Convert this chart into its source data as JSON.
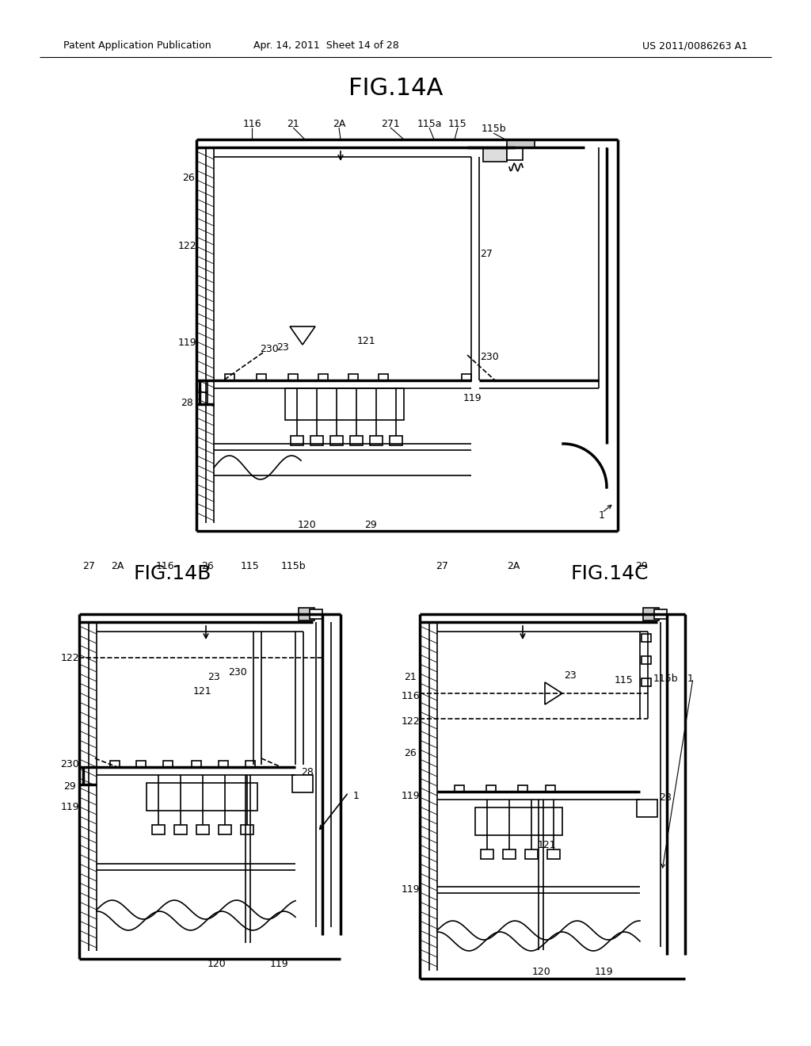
{
  "bg_color": "#ffffff",
  "lc": "#000000",
  "header_left": "Patent Application Publication",
  "header_mid": "Apr. 14, 2011  Sheet 14 of 28",
  "header_right": "US 2011/0086263 A1",
  "fig_A_title": "FIG.14A",
  "fig_B_title": "FIG.14B",
  "fig_C_title": "FIG.14C",
  "note_lw": 1.2,
  "thick_lw": 2.5
}
